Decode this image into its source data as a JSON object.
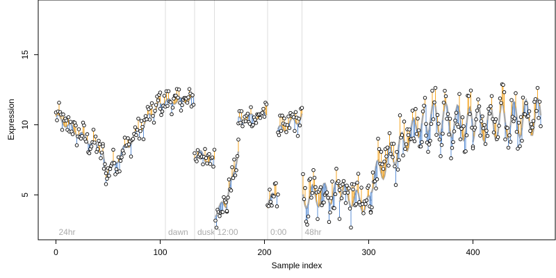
{
  "chart_data": {
    "type": "scatter",
    "title": "",
    "xlabel": "Sample index",
    "ylabel": "Expression",
    "xlim": [
      -17,
      479
    ],
    "ylim": [
      1.8,
      18.9
    ],
    "xticks": [
      0,
      100,
      200,
      300,
      400
    ],
    "yticks": [
      5,
      10,
      15
    ],
    "grid": false,
    "legend": "none",
    "colors": {
      "fit_line": "#aaaaaa",
      "residual_positive": "#f5a623",
      "residual_negative": "#5b8fd6",
      "point_stroke": "#000000",
      "point_fill": "#ffffff",
      "annotation_line": "#dddddd",
      "annotation_text": "#aaaaaa"
    },
    "annotations": [
      {
        "x": 0,
        "label": "24hr",
        "line": false
      },
      {
        "x": 105,
        "label": "dawn",
        "line": true
      },
      {
        "x": 133,
        "label": "dusk",
        "line": true
      },
      {
        "x": 152,
        "label": "12:00",
        "line": true
      },
      {
        "x": 203,
        "label": "0:00",
        "line": true
      },
      {
        "x": 236,
        "label": "48hr",
        "line": true
      }
    ],
    "segments": [
      {
        "x": [
          0,
          45
        ],
        "y": [
          10.6,
          8.1
        ],
        "wave": 0.25
      },
      {
        "x": [
          45,
          48
        ],
        "y": [
          8.1,
          6.5
        ],
        "wave": 0.0
      },
      {
        "x": [
          48,
          100
        ],
        "y": [
          6.5,
          11.6
        ],
        "wave": 0.3
      },
      {
        "x": [
          100,
          132
        ],
        "y": [
          11.6,
          11.8
        ],
        "wave": 0.2
      },
      {
        "x": [
          133,
          152
        ],
        "y": [
          8.0,
          7.3
        ],
        "wave": 0.35
      },
      {
        "x": [
          153,
          164
        ],
        "y": [
          3.8,
          4.4
        ],
        "wave": 0.35
      },
      {
        "x": [
          164,
          175
        ],
        "y": [
          4.4,
          8.2
        ],
        "wave": 0.3
      },
      {
        "x": [
          175,
          202
        ],
        "y": [
          10.3,
          10.8
        ],
        "wave": 0.25
      },
      {
        "x": [
          203,
          213
        ],
        "y": [
          4.2,
          5.5
        ],
        "wave": 0.35
      },
      {
        "x": [
          213,
          236
        ],
        "y": [
          9.5,
          10.6
        ],
        "wave": 0.35
      },
      {
        "x": [
          237,
          272
        ],
        "y": [
          4.8,
          5.2
        ],
        "wave": 0.8
      },
      {
        "x": [
          272,
          302
        ],
        "y": [
          5.2,
          4.2
        ],
        "wave": 0.7
      },
      {
        "x": [
          302,
          355
        ],
        "y": [
          6.0,
          10.6
        ],
        "wave": 0.9
      },
      {
        "x": [
          355,
          400
        ],
        "y": [
          10.6,
          10.0
        ],
        "wave": 1.2
      },
      {
        "x": [
          400,
          465
        ],
        "y": [
          10.0,
          10.6
        ],
        "wave": 1.3
      }
    ]
  }
}
